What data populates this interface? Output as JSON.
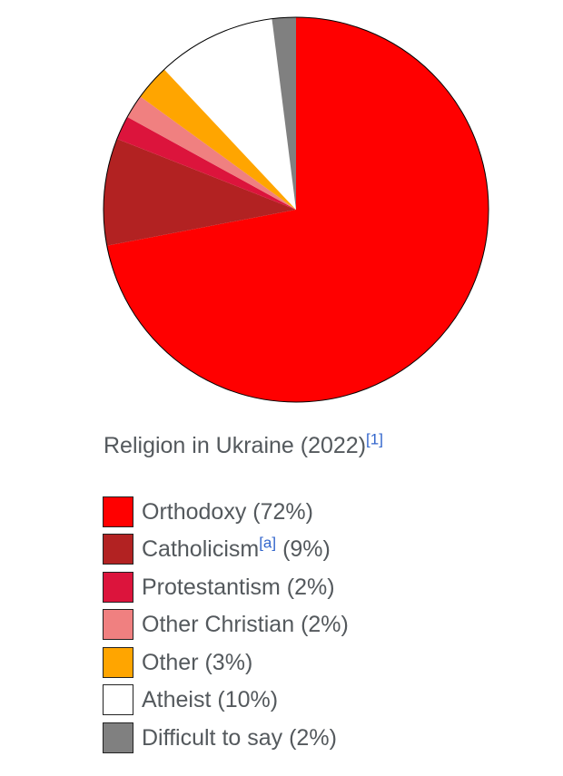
{
  "chart_data": {
    "type": "pie",
    "title": "Religion in Ukraine (2022)",
    "title_ref": "[1]",
    "start_angle_deg": 0,
    "direction": "clockwise",
    "legend_position": "bottom",
    "slices": [
      {
        "label": "Orthodoxy",
        "note": "",
        "percent_label": "(72%)",
        "value": 72,
        "color": "#ff0000"
      },
      {
        "label": "Catholicism",
        "note": "[a]",
        "percent_label": "(9%)",
        "value": 9,
        "color": "#b22222"
      },
      {
        "label": "Protestantism",
        "note": "",
        "percent_label": "(2%)",
        "value": 2,
        "color": "#dc143c"
      },
      {
        "label": "Other Christian",
        "note": "",
        "percent_label": "(2%)",
        "value": 2,
        "color": "#f08080"
      },
      {
        "label": "Other",
        "note": "",
        "percent_label": "(3%)",
        "value": 3,
        "color": "#ffa500"
      },
      {
        "label": "Atheist",
        "note": "",
        "percent_label": "(10%)",
        "value": 10,
        "color": "#ffffff"
      },
      {
        "label": "Difficult to say",
        "note": "",
        "percent_label": "(2%)",
        "value": 2,
        "color": "#808080"
      }
    ]
  }
}
